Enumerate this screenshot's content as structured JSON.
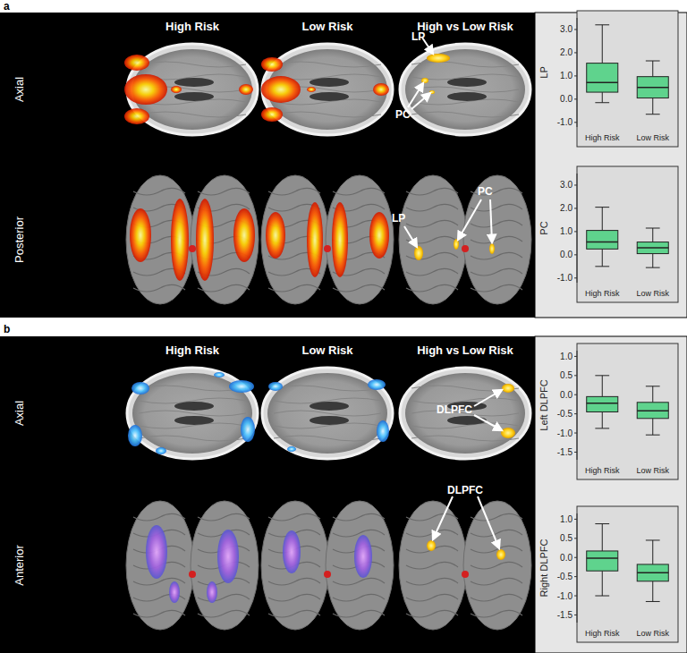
{
  "panels": [
    {
      "label": "a",
      "columns": [
        "High Risk",
        "Low Risk",
        "High vs Low Risk"
      ],
      "rows": [
        "Axial",
        "Posterior"
      ],
      "annotations": [
        "LP",
        "PC",
        "LP",
        "PC"
      ]
    },
    {
      "label": "b",
      "columns": [
        "High Risk",
        "Low Risk",
        "High vs Low Risk"
      ],
      "rows": [
        "Axial",
        "Anterior"
      ],
      "annotations": [
        "DLPFC",
        "DLPFC"
      ]
    }
  ],
  "chart_data": [
    {
      "type": "box",
      "y_label": "LP",
      "categories": [
        "High Risk",
        "Low Risk"
      ],
      "min": [
        -0.15,
        -0.65
      ],
      "q1": [
        0.3,
        0.05
      ],
      "median": [
        0.72,
        0.5
      ],
      "q3": [
        1.55,
        0.97
      ],
      "max": [
        3.2,
        1.65
      ],
      "color": "#5fd38d",
      "ylim": [
        -1.2,
        3.5
      ],
      "yticks": [
        {
          "value": -1,
          "label": "-1.0"
        },
        {
          "value": 0,
          "label": "0.0"
        },
        {
          "value": 1,
          "label": "1.0"
        },
        {
          "value": 2,
          "label": "2.0"
        },
        {
          "value": 3,
          "label": "3.0"
        }
      ]
    },
    {
      "type": "box",
      "y_label": "PC",
      "categories": [
        "High Risk",
        "Low Risk"
      ],
      "min": [
        -0.5,
        -0.55
      ],
      "q1": [
        0.25,
        0.05
      ],
      "median": [
        0.55,
        0.3
      ],
      "q3": [
        1.05,
        0.55
      ],
      "max": [
        2.05,
        1.15
      ],
      "color": "#5fd38d",
      "ylim": [
        -1.2,
        3.5
      ],
      "yticks": [
        {
          "value": -1,
          "label": "-1.0"
        },
        {
          "value": 0,
          "label": "0.0"
        },
        {
          "value": 1,
          "label": "1.0"
        },
        {
          "value": 2,
          "label": "2.0"
        },
        {
          "value": 3,
          "label": "3.0"
        }
      ]
    },
    {
      "type": "box",
      "y_label": "Left DLPFC",
      "categories": [
        "High Risk",
        "Low Risk"
      ],
      "min": [
        -0.88,
        -1.05
      ],
      "q1": [
        -0.45,
        -0.62
      ],
      "median": [
        -0.22,
        -0.42
      ],
      "q3": [
        -0.05,
        -0.2
      ],
      "max": [
        0.5,
        0.22
      ],
      "color": "#5fd38d",
      "ylim": [
        -1.7,
        1.15
      ],
      "yticks": [
        {
          "value": -1.5,
          "label": "-1.5"
        },
        {
          "value": -1,
          "label": "-1.0"
        },
        {
          "value": -0.5,
          "label": "-0.5"
        },
        {
          "value": 0,
          "label": "0.0"
        },
        {
          "value": 0.5,
          "label": "0.5"
        },
        {
          "value": 1,
          "label": "1.0"
        }
      ]
    },
    {
      "type": "box",
      "y_label": "Right DLPFC",
      "categories": [
        "High Risk",
        "Low Risk"
      ],
      "min": [
        -1.0,
        -1.15
      ],
      "q1": [
        -0.35,
        -0.62
      ],
      "median": [
        -0.02,
        -0.4
      ],
      "q3": [
        0.17,
        -0.18
      ],
      "max": [
        0.88,
        0.45
      ],
      "color": "#5fd38d",
      "ylim": [
        -1.7,
        1.15
      ],
      "yticks": [
        {
          "value": -1.5,
          "label": "-1.5"
        },
        {
          "value": -1,
          "label": "-1.0"
        },
        {
          "value": -0.5,
          "label": "-0.5"
        },
        {
          "value": 0,
          "label": "0.0"
        },
        {
          "value": 0.5,
          "label": "0.5"
        },
        {
          "value": 1,
          "label": "1.0"
        }
      ]
    }
  ]
}
